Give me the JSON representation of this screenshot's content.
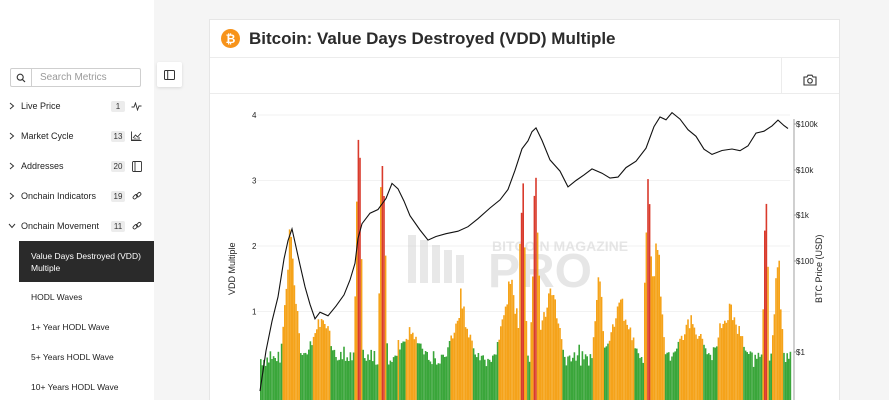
{
  "sidebar": {
    "search_placeholder": "Search Metrics",
    "categories": [
      {
        "label": "Live Price",
        "count": "1",
        "icon": "pulse-icon",
        "expanded": false
      },
      {
        "label": "Market Cycle",
        "count": "13",
        "icon": "chart-icon",
        "expanded": false
      },
      {
        "label": "Addresses",
        "count": "20",
        "icon": "book-icon",
        "expanded": false
      },
      {
        "label": "Onchain Indicators",
        "count": "19",
        "icon": "link-icon",
        "expanded": false
      },
      {
        "label": "Onchain Movement",
        "count": "11",
        "icon": "link-icon",
        "expanded": true
      }
    ],
    "subitems": [
      {
        "label": "Value Days Destroyed (VDD) Multiple",
        "active": true
      },
      {
        "label": "HODL Waves",
        "active": false
      },
      {
        "label": "1+ Year HODL Wave",
        "active": false
      },
      {
        "label": "5+ Years HODL Wave",
        "active": false
      },
      {
        "label": "10+ Years HODL Wave",
        "active": false
      }
    ]
  },
  "panel": {
    "logo_symbol": "₿",
    "title": "Bitcoin: Value Days Destroyed (VDD) Multiple"
  },
  "chart_data": {
    "type": "area",
    "title": "Bitcoin: Value Days Destroyed (VDD) Multiple",
    "ylabel_left": "VDD Multiple",
    "ylabel_right": "BTC Price (USD)",
    "yticks_left": [
      "4",
      "3",
      "2",
      "1"
    ],
    "yticks_right": [
      "$100k",
      "$10k",
      "$1k",
      "$100",
      "$1"
    ],
    "y_left_range": [
      0,
      4.6
    ],
    "y_right_scale": "log",
    "watermark": "BITCOIN MAGAZINE PRO",
    "colors": {
      "low": "#3aa63a",
      "mid": "#f5a31a",
      "high": "#d93a2c",
      "price": "#111111"
    },
    "series": [
      {
        "name": "BTC Price",
        "color": "#111111"
      },
      {
        "name": "VDD Multiple",
        "color": "#f5a31a"
      }
    ]
  }
}
